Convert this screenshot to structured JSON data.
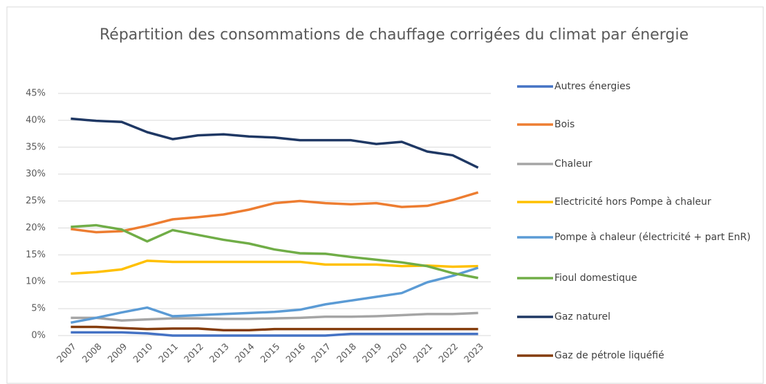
{
  "chart_data": {
    "type": "line",
    "title": "Répartition des consommations de chauffage corrigées du climat par énergie",
    "categories": [
      "2007",
      "2008",
      "2009",
      "2010",
      "2011",
      "2012",
      "2013",
      "2014",
      "2015",
      "2016",
      "2017",
      "2018",
      "2019",
      "2020",
      "2021",
      "2022",
      "2023"
    ],
    "series": [
      {
        "name": "Autres énergies",
        "color": "#4472c4",
        "values": [
          0.6,
          0.6,
          0.6,
          0.4,
          0.0,
          0.0,
          0.0,
          0.0,
          0.0,
          0.0,
          0.0,
          0.3,
          0.3,
          0.3,
          0.3,
          0.3,
          0.3
        ]
      },
      {
        "name": "Bois",
        "color": "#ed7d31",
        "values": [
          19.8,
          19.2,
          19.4,
          20.4,
          21.6,
          22.0,
          22.5,
          23.4,
          24.6,
          25.0,
          24.6,
          24.4,
          24.6,
          23.9,
          24.1,
          25.2,
          26.6
        ]
      },
      {
        "name": "Chaleur",
        "color": "#a5a5a5",
        "values": [
          3.3,
          3.3,
          2.8,
          3.0,
          3.2,
          3.2,
          3.1,
          3.1,
          3.2,
          3.3,
          3.5,
          3.5,
          3.6,
          3.8,
          4.0,
          4.0,
          4.2
        ]
      },
      {
        "name": "Electricité hors Pompe à chaleur",
        "color": "#ffc000",
        "values": [
          11.5,
          11.8,
          12.3,
          13.9,
          13.7,
          13.7,
          13.7,
          13.7,
          13.7,
          13.7,
          13.2,
          13.2,
          13.2,
          12.9,
          13.0,
          12.8,
          12.9
        ]
      },
      {
        "name": "Pompe à chaleur (électricité + part EnR)",
        "color": "#5b9bd5",
        "values": [
          2.4,
          3.3,
          4.3,
          5.2,
          3.6,
          3.8,
          4.0,
          4.2,
          4.4,
          4.8,
          5.8,
          6.5,
          7.2,
          7.9,
          9.9,
          11.1,
          12.6
        ]
      },
      {
        "name": "Fioul domestique",
        "color": "#70ad47",
        "values": [
          20.2,
          20.5,
          19.7,
          17.5,
          19.6,
          18.7,
          17.8,
          17.1,
          16.0,
          15.3,
          15.2,
          14.6,
          14.1,
          13.6,
          12.9,
          11.6,
          10.7
        ]
      },
      {
        "name": "Gaz naturel",
        "color": "#1f3864",
        "values": [
          40.3,
          39.9,
          39.7,
          37.8,
          36.5,
          37.2,
          37.4,
          37.0,
          36.8,
          36.3,
          36.3,
          36.3,
          35.6,
          36.0,
          34.2,
          33.5,
          31.2
        ]
      },
      {
        "name": "Gaz de pétrole liquéfié",
        "color": "#843c0c",
        "values": [
          1.6,
          1.6,
          1.4,
          1.2,
          1.3,
          1.3,
          1.0,
          1.0,
          1.2,
          1.2,
          1.2,
          1.2,
          1.2,
          1.2,
          1.2,
          1.2,
          1.2
        ]
      }
    ],
    "ylim": [
      0,
      45
    ],
    "yticks": [
      {
        "value": 0,
        "label": "0%"
      },
      {
        "value": 5,
        "label": "5%"
      },
      {
        "value": 10,
        "label": "10%"
      },
      {
        "value": 15,
        "label": "15%"
      },
      {
        "value": 20,
        "label": "20%"
      },
      {
        "value": 25,
        "label": "25%"
      },
      {
        "value": 30,
        "label": "30%"
      },
      {
        "value": 35,
        "label": "35%"
      },
      {
        "value": 40,
        "label": "40%"
      },
      {
        "value": 45,
        "label": "45%"
      }
    ],
    "grid": true,
    "legend": "right"
  }
}
